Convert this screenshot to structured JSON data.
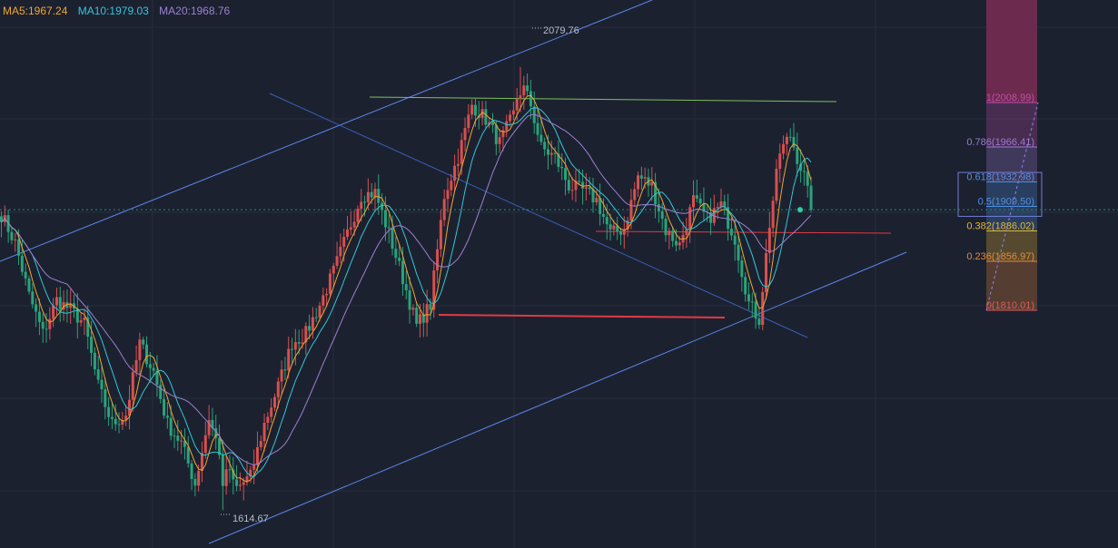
{
  "legend": {
    "ma5": "MA5:1967.24",
    "ma10": "MA10:1979.03",
    "ma20": "MA20:1968.76"
  },
  "colors": {
    "background": "#1c2130",
    "grid": "#262d3d",
    "up": "#d6504f",
    "down": "#2aa37a",
    "ma5": "#f0a630",
    "ma10": "#33c7d6",
    "ma20": "#9c80cf",
    "channel": "#5b86e8",
    "resistance": "#7cc05a",
    "support": "#e13a44",
    "priceline": "#1f8d6c"
  },
  "chart_data": {
    "type": "candlestick",
    "ylim": [
      1575,
      2150
    ],
    "high_label": "2079.76",
    "low_label": "1614.67",
    "high": 2079.76,
    "low": 1614.67,
    "last_price": 1930,
    "anchors": [
      [
        0,
        1925
      ],
      [
        4,
        1895
      ],
      [
        8,
        1840
      ],
      [
        12,
        1800
      ],
      [
        16,
        1835
      ],
      [
        20,
        1825
      ],
      [
        24,
        1810
      ],
      [
        28,
        1745
      ],
      [
        32,
        1705
      ],
      [
        36,
        1715
      ],
      [
        40,
        1790
      ],
      [
        44,
        1760
      ],
      [
        48,
        1705
      ],
      [
        52,
        1685
      ],
      [
        56,
        1642
      ],
      [
        60,
        1712
      ],
      [
        64,
        1665
      ],
      [
        68,
        1638
      ],
      [
        72,
        1650
      ],
      [
        76,
        1705
      ],
      [
        80,
        1745
      ],
      [
        84,
        1790
      ],
      [
        88,
        1800
      ],
      [
        92,
        1830
      ],
      [
        96,
        1865
      ],
      [
        100,
        1905
      ],
      [
        104,
        1945
      ],
      [
        108,
        1948
      ],
      [
        112,
        1905
      ],
      [
        116,
        1858
      ],
      [
        120,
        1808
      ],
      [
        124,
        1830
      ],
      [
        128,
        1945
      ],
      [
        132,
        1985
      ],
      [
        136,
        2040
      ],
      [
        140,
        2025
      ],
      [
        144,
        2000
      ],
      [
        148,
        2030
      ],
      [
        150,
        2065
      ],
      [
        153,
        2040
      ],
      [
        156,
        1995
      ],
      [
        160,
        1985
      ],
      [
        164,
        1955
      ],
      [
        168,
        1950
      ],
      [
        172,
        1940
      ],
      [
        176,
        1905
      ],
      [
        180,
        1910
      ],
      [
        184,
        1965
      ],
      [
        188,
        1955
      ],
      [
        192,
        1908
      ],
      [
        196,
        1893
      ],
      [
        200,
        1940
      ],
      [
        204,
        1920
      ],
      [
        208,
        1935
      ],
      [
        212,
        1900
      ],
      [
        216,
        1832
      ],
      [
        219,
        1815
      ],
      [
        222,
        1915
      ],
      [
        225,
        1990
      ],
      [
        228,
        2008
      ],
      [
        230,
        1985
      ],
      [
        232,
        1965
      ],
      [
        234,
        1930
      ]
    ]
  },
  "fib": {
    "levels": [
      {
        "ratio": 1,
        "label": "1(2008.99)",
        "value": 2008.99,
        "color": "#c04fa8"
      },
      {
        "ratio": 0.786,
        "label": "0.786(1966.41)",
        "value": 1966.41,
        "color": "#9a7ad2"
      },
      {
        "ratio": 0.618,
        "label": "0.618(1932.98)",
        "value": 1932.98,
        "color": "#4f8fe0"
      },
      {
        "ratio": 0.5,
        "label": "0.5(1909.50)",
        "value": 1909.5,
        "color": "#4f8fe0"
      },
      {
        "ratio": 0.382,
        "label": "0.382(1886.02)",
        "value": 1886.02,
        "color": "#e8b830"
      },
      {
        "ratio": 0.236,
        "label": "0.236(1856.97)",
        "value": 1856.97,
        "color": "#e8873a"
      },
      {
        "ratio": 0,
        "label": "0(1810.01)",
        "value": 1810.01,
        "color": "#e05a5a"
      }
    ]
  }
}
